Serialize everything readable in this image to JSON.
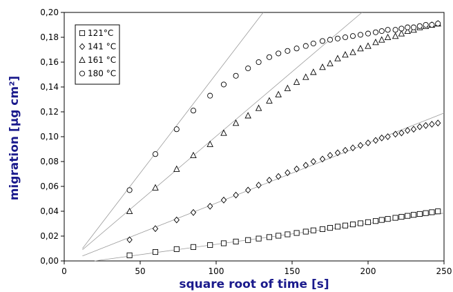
{
  "chart_data": {
    "type": "scatter",
    "xlabel": "square root of time [s]",
    "ylabel": "migration [µg cm²]",
    "xlim": [
      0,
      250
    ],
    "ylim": [
      0,
      0.2
    ],
    "x_ticks": [
      "0",
      "50",
      "100",
      "150",
      "200",
      "250"
    ],
    "y_ticks": [
      "0,00",
      "0,02",
      "0,04",
      "0,06",
      "0,08",
      "0,10",
      "0,12",
      "0,14",
      "0,16",
      "0,18",
      "0,20"
    ],
    "grid": false,
    "legend_position": "top-left",
    "series": [
      {
        "name": "121°C",
        "marker": "square",
        "points": [
          [
            43,
            0.0045
          ],
          [
            60,
            0.0072
          ],
          [
            74,
            0.0095
          ],
          [
            85,
            0.0112
          ],
          [
            96,
            0.0128
          ],
          [
            105,
            0.0142
          ],
          [
            113,
            0.0156
          ],
          [
            121,
            0.0168
          ],
          [
            128,
            0.018
          ],
          [
            135,
            0.0192
          ],
          [
            141,
            0.0203
          ],
          [
            147,
            0.0214
          ],
          [
            153,
            0.0225
          ],
          [
            159,
            0.0236
          ],
          [
            164,
            0.0246
          ],
          [
            170,
            0.0256
          ],
          [
            175,
            0.0266
          ],
          [
            180,
            0.0276
          ],
          [
            185,
            0.0285
          ],
          [
            190,
            0.0294
          ],
          [
            195,
            0.0303
          ],
          [
            200,
            0.0312
          ],
          [
            205,
            0.0321
          ],
          [
            209,
            0.033
          ],
          [
            213,
            0.0338
          ],
          [
            218,
            0.0347
          ],
          [
            222,
            0.0355
          ],
          [
            226,
            0.0363
          ],
          [
            230,
            0.0371
          ],
          [
            234,
            0.0378
          ],
          [
            238,
            0.0385
          ],
          [
            242,
            0.0392
          ],
          [
            246,
            0.0399
          ]
        ],
        "fit": [
          [
            20,
            0.0
          ],
          [
            250,
            0.0385
          ]
        ]
      },
      {
        "name": "141 °C",
        "marker": "diamond",
        "points": [
          [
            43,
            0.017
          ],
          [
            60,
            0.026
          ],
          [
            74,
            0.033
          ],
          [
            85,
            0.039
          ],
          [
            96,
            0.044
          ],
          [
            105,
            0.049
          ],
          [
            113,
            0.053
          ],
          [
            121,
            0.057
          ],
          [
            128,
            0.061
          ],
          [
            135,
            0.065
          ],
          [
            141,
            0.068
          ],
          [
            147,
            0.071
          ],
          [
            153,
            0.074
          ],
          [
            159,
            0.077
          ],
          [
            164,
            0.08
          ],
          [
            170,
            0.082
          ],
          [
            175,
            0.085
          ],
          [
            180,
            0.087
          ],
          [
            185,
            0.089
          ],
          [
            190,
            0.091
          ],
          [
            195,
            0.093
          ],
          [
            200,
            0.095
          ],
          [
            205,
            0.097
          ],
          [
            209,
            0.099
          ],
          [
            213,
            0.1
          ],
          [
            218,
            0.102
          ],
          [
            222,
            0.103
          ],
          [
            226,
            0.105
          ],
          [
            230,
            0.106
          ],
          [
            234,
            0.108
          ],
          [
            238,
            0.109
          ],
          [
            242,
            0.11
          ],
          [
            246,
            0.111
          ]
        ],
        "fit": [
          [
            12,
            0.004
          ],
          [
            250,
            0.119
          ]
        ]
      },
      {
        "name": "161 °C",
        "marker": "triangle",
        "points": [
          [
            43,
            0.04
          ],
          [
            60,
            0.059
          ],
          [
            74,
            0.074
          ],
          [
            85,
            0.085
          ],
          [
            96,
            0.094
          ],
          [
            105,
            0.103
          ],
          [
            113,
            0.111
          ],
          [
            121,
            0.117
          ],
          [
            128,
            0.123
          ],
          [
            135,
            0.129
          ],
          [
            141,
            0.134
          ],
          [
            147,
            0.139
          ],
          [
            153,
            0.144
          ],
          [
            159,
            0.148
          ],
          [
            164,
            0.152
          ],
          [
            170,
            0.156
          ],
          [
            175,
            0.159
          ],
          [
            180,
            0.163
          ],
          [
            185,
            0.166
          ],
          [
            190,
            0.168
          ],
          [
            195,
            0.171
          ],
          [
            200,
            0.173
          ],
          [
            205,
            0.176
          ],
          [
            209,
            0.178
          ],
          [
            213,
            0.18
          ],
          [
            218,
            0.181
          ],
          [
            222,
            0.183
          ],
          [
            226,
            0.185
          ],
          [
            230,
            0.186
          ],
          [
            234,
            0.188
          ],
          [
            238,
            0.189
          ],
          [
            242,
            0.19
          ],
          [
            246,
            0.191
          ]
        ],
        "fit": [
          [
            12,
            0.009
          ],
          [
            196,
            0.2
          ]
        ]
      },
      {
        "name": "180 °C",
        "marker": "circle",
        "points": [
          [
            43,
            0.057
          ],
          [
            60,
            0.086
          ],
          [
            74,
            0.106
          ],
          [
            85,
            0.121
          ],
          [
            96,
            0.133
          ],
          [
            105,
            0.142
          ],
          [
            113,
            0.149
          ],
          [
            121,
            0.155
          ],
          [
            128,
            0.16
          ],
          [
            135,
            0.164
          ],
          [
            141,
            0.167
          ],
          [
            147,
            0.169
          ],
          [
            153,
            0.171
          ],
          [
            159,
            0.173
          ],
          [
            164,
            0.175
          ],
          [
            170,
            0.177
          ],
          [
            175,
            0.178
          ],
          [
            180,
            0.179
          ],
          [
            185,
            0.18
          ],
          [
            190,
            0.181
          ],
          [
            195,
            0.182
          ],
          [
            200,
            0.183
          ],
          [
            205,
            0.184
          ],
          [
            209,
            0.185
          ],
          [
            213,
            0.186
          ],
          [
            218,
            0.186
          ],
          [
            222,
            0.187
          ],
          [
            226,
            0.188
          ],
          [
            230,
            0.188
          ],
          [
            234,
            0.189
          ],
          [
            238,
            0.19
          ],
          [
            242,
            0.19
          ],
          [
            246,
            0.191
          ]
        ],
        "fit": [
          [
            12,
            0.01
          ],
          [
            131,
            0.2
          ]
        ]
      }
    ]
  }
}
